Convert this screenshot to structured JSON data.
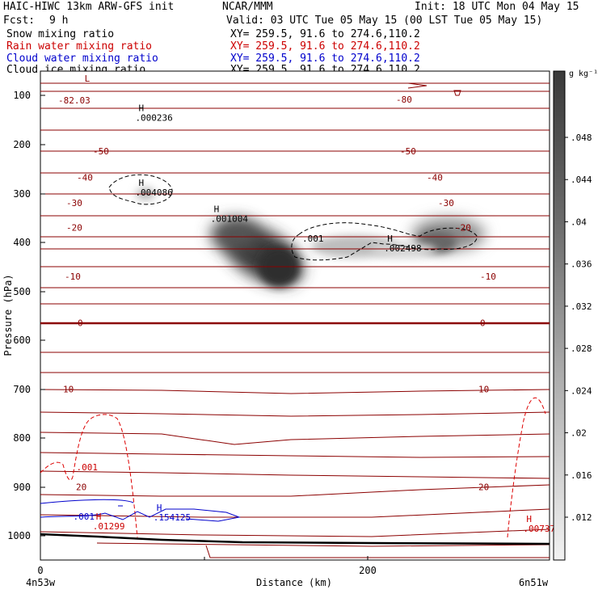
{
  "header": {
    "line1_left": "HAIC-HIWC 13km ARW-GFS init",
    "line1_center": "NCAR/MMM",
    "line1_right": "Init: 18 UTC Mon 04 May 15",
    "fcst_label": "Fcst:",
    "fcst_value": "9 h",
    "valid": "Valid: 03 UTC Tue 05 May 15 (00 LST Tue 05 May 15)",
    "fields": [
      {
        "name": "Snow mixing ratio",
        "xy": "XY= 259.5, 91.6 to 274.6,110.2",
        "color": "#000000"
      },
      {
        "name": "Rain water mixing ratio",
        "xy": "XY= 259.5, 91.6 to 274.6,110.2",
        "color": "#cc0000"
      },
      {
        "name": "Cloud water mixing ratio",
        "xy": "XY= 259.5, 91.6 to 274.6,110.2",
        "color": "#0000cc"
      },
      {
        "name": "Cloud ice mixing ratio",
        "xy": "XY= 259.5, 91.6 to 274.6,110.2",
        "color": "#000000"
      }
    ]
  },
  "chart_data": {
    "type": "cross-section",
    "ylabel": "Pressure (hPa)",
    "xlabel": "Distance (km)",
    "x_ticks": [
      0,
      200
    ],
    "y_ticks": [
      100,
      200,
      300,
      400,
      500,
      600,
      700,
      800,
      900,
      1000
    ],
    "xlim": [
      0,
      310
    ],
    "ylim": [
      1050,
      50
    ],
    "left_endpoint": "4n53w",
    "right_endpoint": "6n51w",
    "colorbar": {
      "unit": "g kg⁻¹",
      "ticks": [
        ".048",
        ".044",
        ".04",
        ".036",
        ".032",
        ".028",
        ".024",
        ".02",
        ".016",
        ".012"
      ]
    },
    "temperature_contours": [
      {
        "value": -82.03,
        "label": "-82.03",
        "pressure": 110
      },
      {
        "value": -80,
        "label": "-80",
        "pressure": 108
      },
      {
        "value": -50,
        "label": "-50",
        "pressure": 214
      },
      {
        "value": -40,
        "label": "-40",
        "pressure": 268
      },
      {
        "value": -30,
        "label": "-30",
        "pressure": 320
      },
      {
        "value": -20,
        "label": "-20",
        "pressure": 370
      },
      {
        "value": -10,
        "label": "-10",
        "pressure": 470
      },
      {
        "value": 0,
        "label": "0",
        "pressure": 565
      },
      {
        "value": 10,
        "label": "10",
        "pressure": 700
      },
      {
        "value": 20,
        "label": "20",
        "pressure": 900
      }
    ],
    "extrema_labels": [
      {
        "mark": "L",
        "label": "",
        "x_km": 25,
        "pressure": 85,
        "color": "#8b0000"
      },
      {
        "mark": "H",
        "label": ".000236",
        "x_km": 58,
        "pressure": 145,
        "color": "#000000"
      },
      {
        "mark": "H",
        "label": ".004086",
        "x_km": 58,
        "pressure": 298,
        "color": "#000000"
      },
      {
        "mark": "H",
        "label": ".001004",
        "x_km": 104,
        "pressure": 352,
        "color": "#000000"
      },
      {
        "mark": "",
        "label": ".001",
        "x_km": 160,
        "pressure": 392,
        "color": "#000000"
      },
      {
        "mark": "H",
        "label": ".002498",
        "x_km": 210,
        "pressure": 412,
        "color": "#000000"
      },
      {
        "mark": "",
        "label": ".001",
        "x_km": 22,
        "pressure": 860,
        "color": "#cc0000"
      },
      {
        "mark": "",
        "label": ".001",
        "x_km": 20,
        "pressure": 960,
        "color": "#0000cc"
      },
      {
        "mark": "H",
        "label": ".01299",
        "x_km": 32,
        "pressure": 980,
        "color": "#cc0000"
      },
      {
        "mark": "H",
        "label": ".154125",
        "x_km": 69,
        "pressure": 962,
        "color": "#0000cc"
      },
      {
        "mark": "H",
        "label": ".00737",
        "x_km": 295,
        "pressure": 985,
        "color": "#cc0000"
      }
    ]
  }
}
